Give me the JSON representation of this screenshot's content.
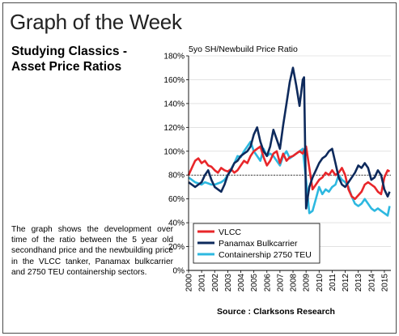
{
  "header": {
    "title": "Graph of the Week",
    "subtitle_line1": "Studying Classics -",
    "subtitle_line2": "Asset Price Ratios",
    "description": "The graph shows the development over time of the ratio between the 5 year old secondhand price and the newbuilding price in the VLCC tanker, Panamax bulkcarrier and 2750 TEU containership sectors."
  },
  "chart_data": {
    "type": "line",
    "title": "5yo SH/Newbuild Price Ratio",
    "source": "Source : Clarksons Research",
    "xlim": [
      2000,
      2015.5
    ],
    "ylim": [
      0,
      180
    ],
    "y_ticks": [
      "0%",
      "20%",
      "40%",
      "60%",
      "80%",
      "100%",
      "120%",
      "140%",
      "160%",
      "180%"
    ],
    "x_ticks": [
      "2000",
      "2001",
      "2002",
      "2003",
      "2004",
      "2005",
      "2006",
      "2007",
      "2008",
      "2009",
      "2010",
      "2011",
      "2012",
      "2013",
      "2014",
      "2015"
    ],
    "reference_line": 80,
    "legend_position": "bottom-left",
    "colors": {
      "VLCC": "#e8262a",
      "Panamax": "#0e2a5c",
      "Container": "#2db8e0",
      "grid": "#d0d0d0",
      "reference": "#000000"
    },
    "series": [
      {
        "name": "VLCC",
        "color": "#e8262a",
        "x": [
          2000.0,
          2000.25,
          2000.5,
          2000.75,
          2001.0,
          2001.25,
          2001.5,
          2001.75,
          2002.0,
          2002.25,
          2002.5,
          2002.75,
          2003.0,
          2003.25,
          2003.5,
          2003.75,
          2004.0,
          2004.25,
          2004.5,
          2004.75,
          2005.0,
          2005.25,
          2005.5,
          2005.75,
          2006.0,
          2006.25,
          2006.5,
          2006.75,
          2007.0,
          2007.25,
          2007.5,
          2007.75,
          2008.0,
          2008.25,
          2008.5,
          2008.75,
          2009.0,
          2009.25,
          2009.5,
          2009.75,
          2010.0,
          2010.25,
          2010.5,
          2010.75,
          2011.0,
          2011.25,
          2011.5,
          2011.75,
          2012.0,
          2012.25,
          2012.5,
          2012.75,
          2013.0,
          2013.25,
          2013.5,
          2013.75,
          2014.0,
          2014.25,
          2014.5,
          2014.75,
          2015.0,
          2015.25,
          2015.4
        ],
        "values": [
          80,
          86,
          92,
          94,
          90,
          92,
          88,
          87,
          84,
          82,
          86,
          84,
          83,
          85,
          82,
          84,
          88,
          92,
          90,
          96,
          100,
          102,
          104,
          95,
          88,
          92,
          98,
          100,
          90,
          98,
          92,
          95,
          96,
          98,
          100,
          98,
          104,
          86,
          68,
          72,
          76,
          78,
          82,
          80,
          84,
          80,
          82,
          86,
          80,
          68,
          62,
          60,
          63,
          66,
          72,
          74,
          72,
          70,
          66,
          64,
          78,
          84,
          83
        ]
      },
      {
        "name": "Panamax Bulkcarrier",
        "color": "#0e2a5c",
        "x": [
          2000.0,
          2000.25,
          2000.5,
          2000.75,
          2001.0,
          2001.25,
          2001.5,
          2001.75,
          2002.0,
          2002.25,
          2002.5,
          2002.75,
          2003.0,
          2003.25,
          2003.5,
          2003.75,
          2004.0,
          2004.25,
          2004.5,
          2004.75,
          2005.0,
          2005.25,
          2005.5,
          2005.75,
          2006.0,
          2006.25,
          2006.5,
          2006.75,
          2007.0,
          2007.25,
          2007.5,
          2007.75,
          2008.0,
          2008.25,
          2008.5,
          2008.75,
          2008.85,
          2009.0,
          2009.25,
          2009.5,
          2009.75,
          2010.0,
          2010.25,
          2010.5,
          2010.75,
          2011.0,
          2011.25,
          2011.5,
          2011.75,
          2012.0,
          2012.25,
          2012.5,
          2012.75,
          2013.0,
          2013.25,
          2013.5,
          2013.75,
          2014.0,
          2014.25,
          2014.5,
          2014.75,
          2015.0,
          2015.25,
          2015.4
        ],
        "values": [
          74,
          72,
          70,
          72,
          74,
          80,
          84,
          76,
          70,
          68,
          66,
          72,
          80,
          84,
          90,
          92,
          96,
          98,
          100,
          104,
          114,
          120,
          108,
          100,
          96,
          104,
          118,
          110,
          102,
          122,
          140,
          158,
          170,
          155,
          138,
          160,
          162,
          52,
          70,
          78,
          84,
          90,
          94,
          96,
          100,
          102,
          90,
          78,
          72,
          70,
          74,
          78,
          82,
          88,
          86,
          90,
          86,
          76,
          78,
          84,
          80,
          68,
          62,
          66
        ]
      },
      {
        "name": "Containership 2750 TEU",
        "color": "#2db8e0",
        "x": [
          2000.0,
          2000.25,
          2000.5,
          2000.75,
          2001.0,
          2001.25,
          2001.5,
          2001.75,
          2002.0,
          2002.25,
          2002.5,
          2002.75,
          2003.0,
          2003.25,
          2003.5,
          2003.75,
          2004.0,
          2004.25,
          2004.5,
          2004.75,
          2005.0,
          2005.25,
          2005.5,
          2005.75,
          2006.0,
          2006.25,
          2006.5,
          2006.75,
          2007.0,
          2007.25,
          2007.5,
          2007.75,
          2008.0,
          2008.25,
          2008.5,
          2008.75,
          2009.0,
          2009.25,
          2009.5,
          2009.75,
          2010.0,
          2010.25,
          2010.5,
          2010.75,
          2011.0,
          2011.25,
          2011.5,
          2011.75,
          2012.0,
          2012.25,
          2012.5,
          2012.75,
          2013.0,
          2013.25,
          2013.5,
          2013.75,
          2014.0,
          2014.25,
          2014.5,
          2014.75,
          2015.0,
          2015.25,
          2015.4
        ],
        "values": [
          78,
          76,
          74,
          73,
          72,
          74,
          73,
          72,
          72,
          73,
          74,
          76,
          80,
          85,
          90,
          96,
          95,
          100,
          104,
          108,
          100,
          96,
          92,
          102,
          96,
          98,
          96,
          92,
          88,
          96,
          100,
          94,
          96,
          98,
          100,
          102,
          76,
          48,
          50,
          60,
          70,
          64,
          68,
          66,
          70,
          72,
          80,
          76,
          74,
          70,
          62,
          56,
          54,
          56,
          60,
          56,
          52,
          50,
          52,
          50,
          48,
          46,
          54
        ]
      }
    ]
  }
}
